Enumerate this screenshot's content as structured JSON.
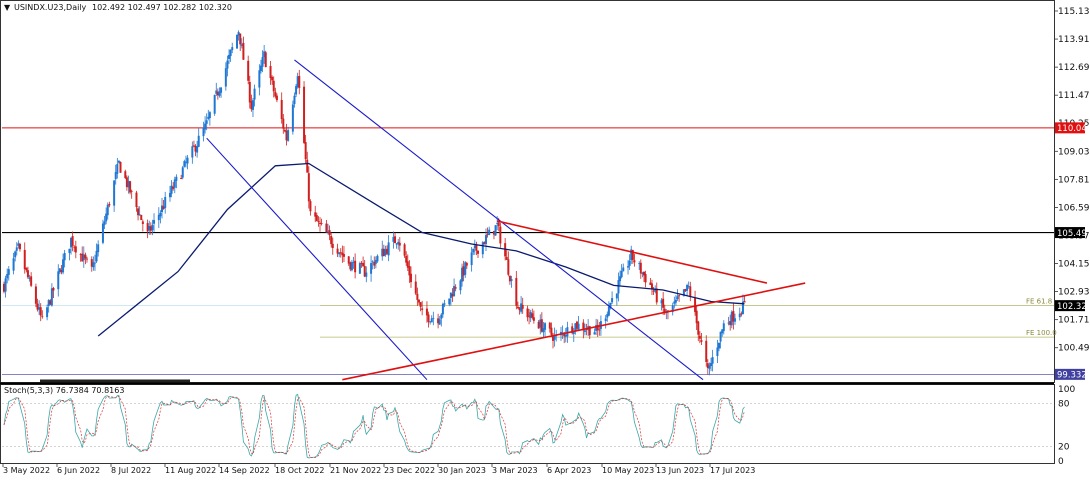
{
  "header": {
    "symbol": "USINDX.U23,Daily",
    "ohlc": "102.492 102.497 102.282 102.320"
  },
  "stoch": {
    "label": "Stoch(5,3,3) 76.7384 70.8163",
    "levels": [
      "100",
      "80",
      "20",
      "0"
    ]
  },
  "price_axis": [
    "115.130",
    "113.910",
    "112.690",
    "111.470",
    "110.250",
    "109.030",
    "107.810",
    "106.590",
    "105.370",
    "104.150",
    "102.930",
    "101.710",
    "100.490"
  ],
  "price_tags": {
    "red_level": "110.049",
    "black_level": "105.497",
    "current": "102.320",
    "low_level": "99.332"
  },
  "fib_labels": {
    "fe61": "FE 61.8",
    "fe100": "FE 100.0"
  },
  "dates": [
    "3 May 2022",
    "6 Jun 2022",
    "8 Jul 2022",
    "11 Aug 2022",
    "14 Sep 2022",
    "18 Oct 2022",
    "21 Nov 2022",
    "23 Dec 2022",
    "30 Jan 2023",
    "3 Mar 2023",
    "6 Apr 2023",
    "10 May 2023",
    "13 Jun 2023",
    "17 Jul 2023"
  ],
  "colors": {
    "up": "#1f77d4",
    "down": "#d11f1f",
    "ma": "#0a1a6e",
    "channel": "#1a1acc",
    "trend": "#e01010",
    "fib": "#b8b86a"
  },
  "chart_data": {
    "type": "candlestick",
    "x_range": [
      "2022-05-03",
      "2023-08-10"
    ],
    "ylim": [
      99.1,
      115.6
    ],
    "price_path": [
      {
        "date": "2022-05-03",
        "price": 103.2
      },
      {
        "date": "2022-05-12",
        "price": 104.8
      },
      {
        "date": "2022-05-27",
        "price": 101.6
      },
      {
        "date": "2022-06-14",
        "price": 105.2
      },
      {
        "date": "2022-06-27",
        "price": 103.8
      },
      {
        "date": "2022-07-14",
        "price": 108.5
      },
      {
        "date": "2022-08-01",
        "price": 105.4
      },
      {
        "date": "2022-08-29",
        "price": 109.0
      },
      {
        "date": "2022-09-07",
        "price": 110.2
      },
      {
        "date": "2022-09-27",
        "price": 114.3
      },
      {
        "date": "2022-10-05",
        "price": 111.0
      },
      {
        "date": "2022-10-13",
        "price": 113.2
      },
      {
        "date": "2022-10-27",
        "price": 109.6
      },
      {
        "date": "2022-11-03",
        "price": 112.5
      },
      {
        "date": "2022-11-11",
        "price": 106.3
      },
      {
        "date": "2022-12-05",
        "price": 104.2
      },
      {
        "date": "2022-12-15",
        "price": 103.8
      },
      {
        "date": "2022-12-23",
        "price": 104.4
      },
      {
        "date": "2023-01-05",
        "price": 105.3
      },
      {
        "date": "2023-01-20",
        "price": 101.9
      },
      {
        "date": "2023-01-30",
        "price": 101.8
      },
      {
        "date": "2023-02-21",
        "price": 104.6
      },
      {
        "date": "2023-03-08",
        "price": 105.8
      },
      {
        "date": "2023-03-21",
        "price": 102.3
      },
      {
        "date": "2023-04-14",
        "price": 100.9
      },
      {
        "date": "2023-04-26",
        "price": 101.5
      },
      {
        "date": "2023-05-10",
        "price": 101.2
      },
      {
        "date": "2023-05-31",
        "price": 104.5
      },
      {
        "date": "2023-06-12",
        "price": 103.2
      },
      {
        "date": "2023-06-22",
        "price": 101.9
      },
      {
        "date": "2023-07-06",
        "price": 103.1
      },
      {
        "date": "2023-07-18",
        "price": 99.4
      },
      {
        "date": "2023-07-28",
        "price": 101.5
      },
      {
        "date": "2023-08-10",
        "price": 102.32
      }
    ],
    "moving_average": [
      {
        "date": "2022-07-01",
        "price": 101.0
      },
      {
        "date": "2022-08-20",
        "price": 103.8
      },
      {
        "date": "2022-09-20",
        "price": 106.5
      },
      {
        "date": "2022-10-20",
        "price": 108.4
      },
      {
        "date": "2022-11-10",
        "price": 108.5
      },
      {
        "date": "2022-12-20",
        "price": 106.8
      },
      {
        "date": "2023-01-20",
        "price": 105.5
      },
      {
        "date": "2023-02-20",
        "price": 105.0
      },
      {
        "date": "2023-03-20",
        "price": 104.7
      },
      {
        "date": "2023-04-20",
        "price": 104.0
      },
      {
        "date": "2023-05-20",
        "price": 103.2
      },
      {
        "date": "2023-06-20",
        "price": 103.0
      },
      {
        "date": "2023-07-20",
        "price": 102.5
      },
      {
        "date": "2023-08-10",
        "price": 102.4
      }
    ],
    "horizontal_levels": [
      110.049,
      105.497,
      102.32,
      99.332
    ],
    "fib_levels": [
      {
        "label": "FE 61.8",
        "price": 102.32
      },
      {
        "label": "FE 100.0",
        "price": 100.95
      }
    ],
    "blue_channel": [
      {
        "from": {
          "date": "2022-09-07",
          "price": 109.6
        },
        "to": {
          "date": "2023-01-23",
          "price": 99.1
        }
      },
      {
        "from": {
          "date": "2022-11-01",
          "price": 113.0
        },
        "to": {
          "date": "2023-07-15",
          "price": 99.1
        }
      }
    ],
    "red_trendlines": [
      {
        "from": {
          "date": "2023-03-08",
          "price": 106.0
        },
        "to": {
          "date": "2023-08-24",
          "price": 103.3
        }
      },
      {
        "from": {
          "date": "2022-12-01",
          "price": 99.1
        },
        "to": {
          "date": "2023-09-17",
          "price": 103.3
        }
      }
    ],
    "stochastic": {
      "k": 76.7384,
      "d": 70.8163,
      "levels": [
        80,
        20
      ]
    }
  }
}
